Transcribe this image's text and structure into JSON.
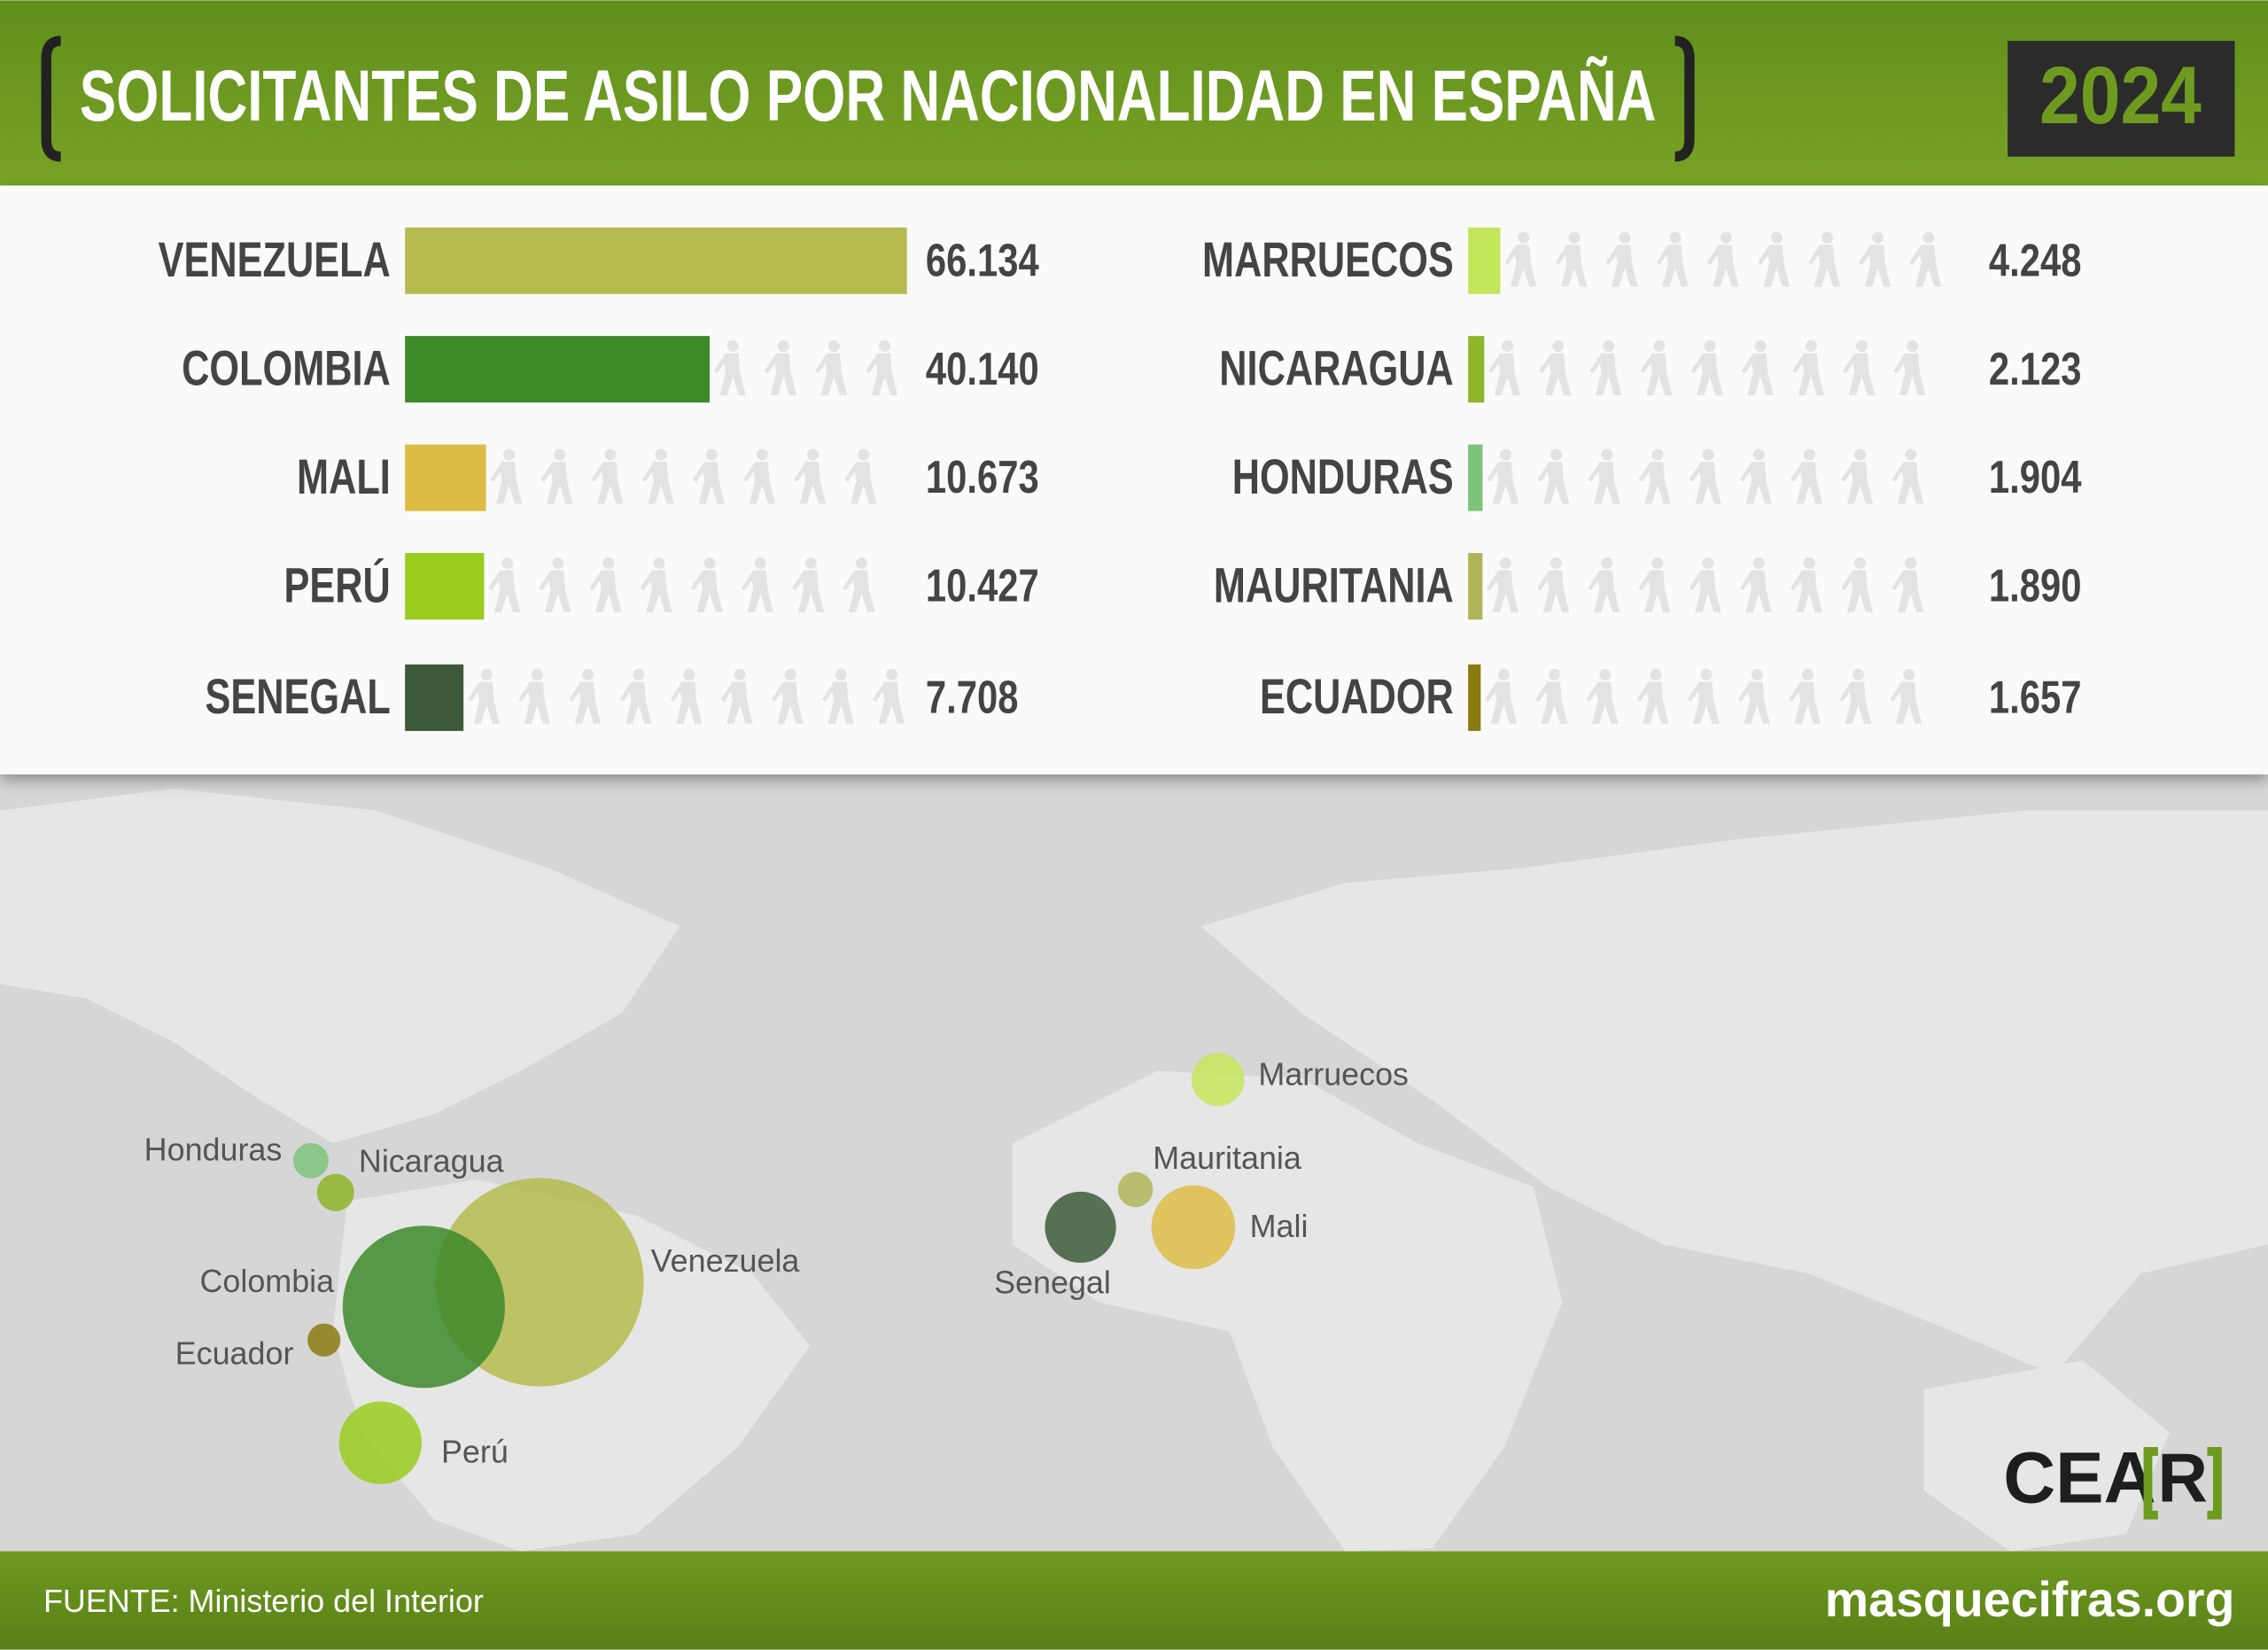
{
  "title": "SOLICITANTES DE ASILO POR NACIONALIDAD EN ESPAÑA",
  "year": "2024",
  "source": "FUENTE: Ministerio del Interior",
  "website": "masquecifras.org",
  "logo_main": "CEA",
  "logo_mark": "R",
  "chart_data": {
    "type": "bar",
    "categories": [
      "VENEZUELA",
      "COLOMBIA",
      "MALI",
      "PERÚ",
      "SENEGAL",
      "MARRUECOS",
      "NICARAGUA",
      "HONDURAS",
      "MAURITANIA",
      "ECUADOR"
    ],
    "values": [
      66134,
      40140,
      10673,
      10427,
      7708,
      4248,
      2123,
      1904,
      1890,
      1657
    ],
    "value_labels": [
      "66.134",
      "40.140",
      "10.673",
      "10.427",
      "7.708",
      "4.248",
      "2.123",
      "1.904",
      "1.890",
      "1.657"
    ],
    "colors": [
      "#b5bb4e",
      "#3d8a2a",
      "#dcbc45",
      "#9acd1f",
      "#3c5a3a",
      "#c4e65a",
      "#8fb52a",
      "#7cc47a",
      "#b0b55a",
      "#8a7a10"
    ],
    "map_labels": [
      "Venezuela",
      "Colombia",
      "Mali",
      "Perú",
      "Senegal",
      "Marruecos",
      "Nicaragua",
      "Honduras",
      "Mauritania",
      "Ecuador"
    ]
  }
}
